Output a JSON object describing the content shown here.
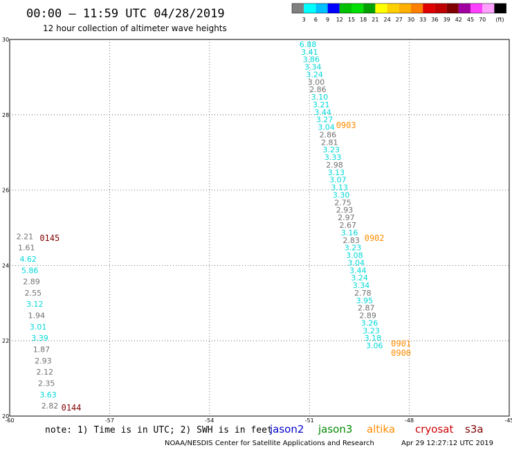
{
  "header": {
    "title": "00:00 – 11:59 UTC 04/28/2019",
    "subtitle": "12 hour collection of altimeter wave heights"
  },
  "legend": {
    "colors": [
      "#808080",
      "#00ffff",
      "#00c0ff",
      "#0000ff",
      "#00c000",
      "#00e000",
      "#00a000",
      "#ffff00",
      "#ffd000",
      "#ffb000",
      "#ff8000",
      "#e00000",
      "#c00000",
      "#800000",
      "#a000a0",
      "#ff40ff",
      "#ffa0ff",
      "#000000"
    ],
    "labels": [
      "3",
      "6",
      "9",
      "12",
      "15",
      "18",
      "21",
      "24",
      "27",
      "30",
      "33",
      "36",
      "39",
      "42",
      "45",
      "70"
    ],
    "unit": "(ft)"
  },
  "footer": {
    "note": "note:  1) Time is in UTC;  2) SWH is in feet",
    "satellites": [
      {
        "name": "jason2",
        "color": "#0000cc"
      },
      {
        "name": "jason3",
        "color": "#008800"
      },
      {
        "name": "altika",
        "color": "#ff8800"
      },
      {
        "name": "cryosat",
        "color": "#cc0000"
      },
      {
        "name": "s3a",
        "color": "#800000"
      }
    ],
    "credit": "NOAA/NESDIS Center for Satellite Applications and Research",
    "timestamp": "Apr 29 12:27:12 UTC 2019"
  },
  "chart_data": {
    "type": "scatter",
    "xlim": [
      -60,
      -45
    ],
    "ylim": [
      20,
      30
    ],
    "xticks": [
      "-60",
      "-57",
      "-54",
      "-51",
      "-48",
      "-45"
    ],
    "yticks": [
      "20",
      "22",
      "24",
      "26",
      "28",
      "30"
    ],
    "grid": true,
    "colors": {
      "gray": "#707070",
      "cyan": "#00d8d8",
      "altika": "#ff8c00",
      "s3a": "#800000"
    },
    "series": [
      {
        "points": [
          {
            "x": -51.3,
            "y": 29.8,
            "v": "6.88",
            "c": "cyan"
          },
          {
            "x": -51.25,
            "y": 29.6,
            "v": "3.41",
            "c": "cyan"
          },
          {
            "x": -51.2,
            "y": 29.4,
            "v": "3.86",
            "c": "cyan"
          },
          {
            "x": -51.15,
            "y": 29.2,
            "v": "3.34",
            "c": "cyan"
          },
          {
            "x": -51.1,
            "y": 29.0,
            "v": "3.24",
            "c": "cyan"
          },
          {
            "x": -51.05,
            "y": 28.8,
            "v": "3.00",
            "c": "gray"
          },
          {
            "x": -51.0,
            "y": 28.6,
            "v": "2.86",
            "c": "gray"
          },
          {
            "x": -50.95,
            "y": 28.4,
            "v": "3.10",
            "c": "cyan"
          },
          {
            "x": -50.9,
            "y": 28.2,
            "v": "3.21",
            "c": "cyan"
          },
          {
            "x": -50.85,
            "y": 28.0,
            "v": "3.44",
            "c": "cyan"
          },
          {
            "x": -50.8,
            "y": 27.8,
            "v": "3.27",
            "c": "cyan"
          },
          {
            "x": -50.75,
            "y": 27.6,
            "v": "3.04",
            "c": "cyan"
          },
          {
            "x": -50.7,
            "y": 27.4,
            "v": "2.86",
            "c": "gray"
          },
          {
            "x": -50.65,
            "y": 27.2,
            "v": "2.81",
            "c": "gray"
          },
          {
            "x": -50.6,
            "y": 27.0,
            "v": "3.23",
            "c": "cyan"
          },
          {
            "x": -50.55,
            "y": 26.8,
            "v": "3.33",
            "c": "cyan"
          },
          {
            "x": -50.5,
            "y": 26.6,
            "v": "2.98",
            "c": "gray"
          },
          {
            "x": -50.45,
            "y": 26.4,
            "v": "3.13",
            "c": "cyan"
          },
          {
            "x": -50.4,
            "y": 26.2,
            "v": "3.07",
            "c": "cyan"
          },
          {
            "x": -50.35,
            "y": 26.0,
            "v": "3.13",
            "c": "cyan"
          },
          {
            "x": -50.3,
            "y": 25.8,
            "v": "3.30",
            "c": "cyan"
          },
          {
            "x": -50.25,
            "y": 25.6,
            "v": "2.75",
            "c": "gray"
          },
          {
            "x": -50.2,
            "y": 25.4,
            "v": "2.93",
            "c": "gray"
          },
          {
            "x": -50.15,
            "y": 25.2,
            "v": "2.97",
            "c": "gray"
          },
          {
            "x": -50.1,
            "y": 25.0,
            "v": "2.67",
            "c": "gray"
          },
          {
            "x": -50.05,
            "y": 24.8,
            "v": "3.16",
            "c": "cyan"
          },
          {
            "x": -50.0,
            "y": 24.6,
            "v": "2.83",
            "c": "gray"
          },
          {
            "x": -49.95,
            "y": 24.4,
            "v": "3.23",
            "c": "cyan"
          },
          {
            "x": -49.9,
            "y": 24.2,
            "v": "3.08",
            "c": "cyan"
          },
          {
            "x": -49.85,
            "y": 24.0,
            "v": "3.04",
            "c": "cyan"
          },
          {
            "x": -49.8,
            "y": 23.8,
            "v": "3.44",
            "c": "cyan"
          },
          {
            "x": -49.75,
            "y": 23.6,
            "v": "3.24",
            "c": "cyan"
          },
          {
            "x": -49.7,
            "y": 23.4,
            "v": "3.34",
            "c": "cyan"
          },
          {
            "x": -49.65,
            "y": 23.2,
            "v": "2.78",
            "c": "gray"
          },
          {
            "x": -49.6,
            "y": 23.0,
            "v": "3.95",
            "c": "cyan"
          },
          {
            "x": -49.55,
            "y": 22.8,
            "v": "2.87",
            "c": "gray"
          },
          {
            "x": -49.5,
            "y": 22.6,
            "v": "2.89",
            "c": "gray"
          },
          {
            "x": -49.45,
            "y": 22.4,
            "v": "3.26",
            "c": "cyan"
          },
          {
            "x": -49.4,
            "y": 22.2,
            "v": "3.23",
            "c": "cyan"
          },
          {
            "x": -49.35,
            "y": 22.0,
            "v": "3.18",
            "c": "cyan"
          },
          {
            "x": -49.3,
            "y": 21.8,
            "v": "3.06",
            "c": "cyan"
          },
          {
            "x": -59.8,
            "y": 24.7,
            "v": "2.21",
            "c": "gray"
          },
          {
            "x": -59.75,
            "y": 24.4,
            "v": "1.61",
            "c": "gray"
          },
          {
            "x": -59.7,
            "y": 24.1,
            "v": "4.62",
            "c": "cyan"
          },
          {
            "x": -59.65,
            "y": 23.8,
            "v": "5.86",
            "c": "cyan"
          },
          {
            "x": -59.6,
            "y": 23.5,
            "v": "2.89",
            "c": "gray"
          },
          {
            "x": -59.55,
            "y": 23.2,
            "v": "2.55",
            "c": "gray"
          },
          {
            "x": -59.5,
            "y": 22.9,
            "v": "3.12",
            "c": "cyan"
          },
          {
            "x": -59.45,
            "y": 22.6,
            "v": "1.94",
            "c": "gray"
          },
          {
            "x": -59.4,
            "y": 22.3,
            "v": "3.01",
            "c": "cyan"
          },
          {
            "x": -59.35,
            "y": 22.0,
            "v": "3.39",
            "c": "cyan"
          },
          {
            "x": -59.3,
            "y": 21.7,
            "v": "1.87",
            "c": "gray"
          },
          {
            "x": -59.25,
            "y": 21.4,
            "v": "2.93",
            "c": "gray"
          },
          {
            "x": -59.2,
            "y": 21.1,
            "v": "2.12",
            "c": "gray"
          },
          {
            "x": -59.15,
            "y": 20.8,
            "v": "2.35",
            "c": "gray"
          },
          {
            "x": -59.1,
            "y": 20.5,
            "v": "3.63",
            "c": "cyan"
          },
          {
            "x": -59.05,
            "y": 20.2,
            "v": "2.82",
            "c": "gray"
          }
        ]
      }
    ],
    "pass_labels": [
      {
        "text": "0903",
        "x": -50.2,
        "y": 27.65,
        "c": "altika"
      },
      {
        "text": "0902",
        "x": -49.35,
        "y": 24.65,
        "c": "altika"
      },
      {
        "text": "0901",
        "x": -48.55,
        "y": 21.85,
        "c": "altika"
      },
      {
        "text": "0900",
        "x": -48.55,
        "y": 21.6,
        "c": "altika"
      },
      {
        "text": "0145",
        "x": -59.1,
        "y": 24.65,
        "c": "s3a"
      },
      {
        "text": "0144",
        "x": -58.45,
        "y": 20.15,
        "c": "s3a"
      }
    ]
  }
}
